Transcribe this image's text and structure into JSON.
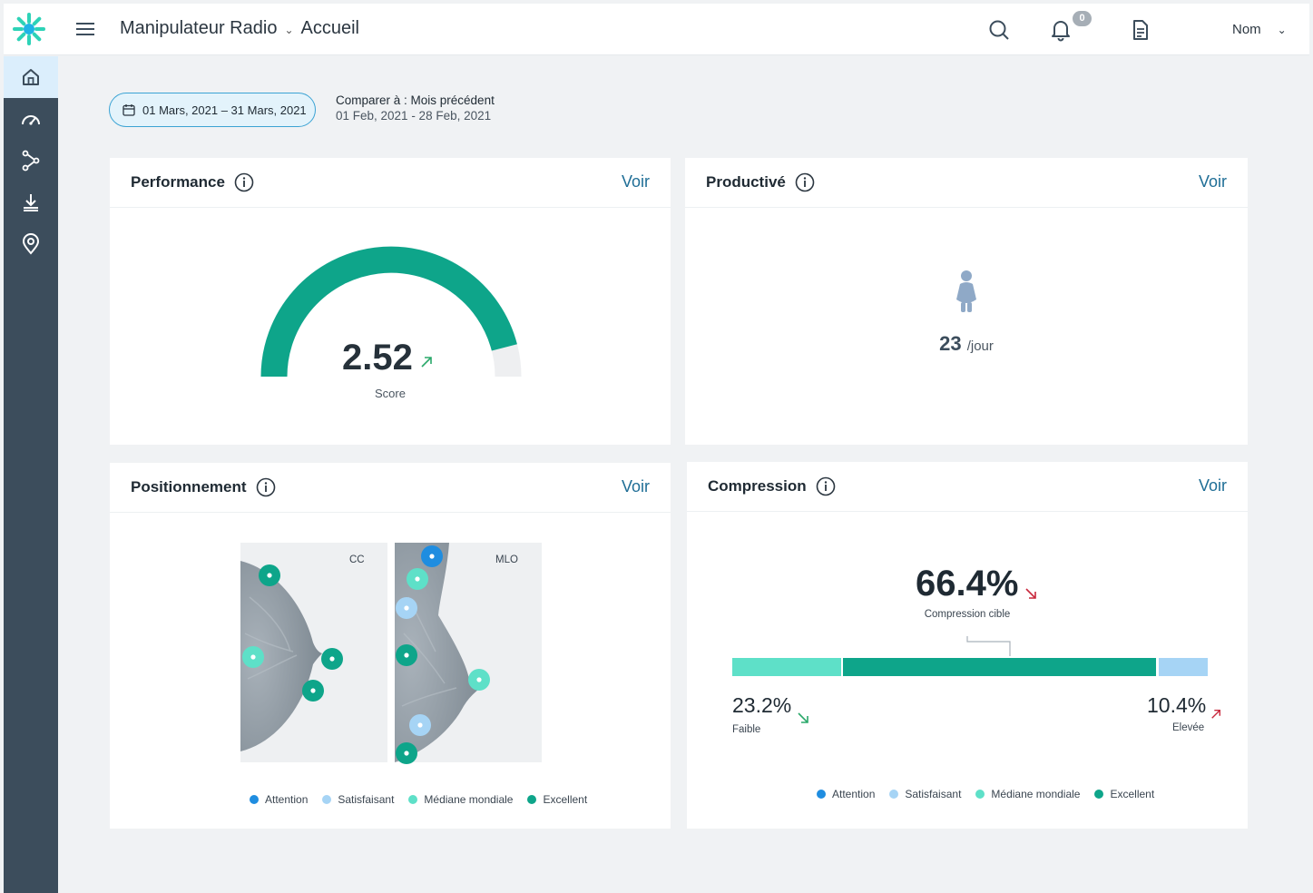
{
  "header": {
    "role": "Manipulateur Radio",
    "page": "Accueil",
    "notification_count": "0",
    "user_name": "Nom"
  },
  "sidebar": {
    "items": [
      {
        "icon": "home-icon",
        "active": true
      },
      {
        "icon": "gauge-icon",
        "active": false
      },
      {
        "icon": "workflow-icon",
        "active": false
      },
      {
        "icon": "download-icon",
        "active": false
      },
      {
        "icon": "location-pin-icon",
        "active": false
      }
    ]
  },
  "filters": {
    "date_range": "01 Mars, 2021 – 31 Mars, 2021",
    "compare_label": "Comparer à : Mois précédent",
    "compare_range": "01 Feb, 2021 - 28 Feb, 2021"
  },
  "cards": {
    "performance": {
      "title": "Performance",
      "link": "Voir",
      "value": "2.52",
      "value_label": "Score",
      "gauge_fraction": 0.92,
      "trend": "up"
    },
    "productivite": {
      "title": "Productivé",
      "link": "Voir",
      "value": "23",
      "unit": "/jour",
      "icon": "patient-icon"
    },
    "positionnement": {
      "title": "Positionnement",
      "link": "Voir",
      "views": [
        "CC",
        "MLO"
      ],
      "legend": [
        "Attention",
        "Satisfaisant",
        "Médiane mondiale",
        "Excellent"
      ]
    },
    "compression": {
      "title": "Compression",
      "link": "Voir",
      "target_value": "66.4%",
      "target_label": "Compression cible",
      "low_value": "23.2%",
      "low_label": "Faible",
      "high_value": "10.4%",
      "high_label": "Elevée",
      "distribution": [
        0.232,
        0.664,
        0.104
      ],
      "legend": [
        "Attention",
        "Satisfaisant",
        "Médiane mondiale",
        "Excellent"
      ]
    }
  },
  "colors": {
    "attention": "#1f8de0",
    "satisfaisant": "#a6d4f5",
    "mediane": "#5ee0c8",
    "excellent": "#0ea58a",
    "sidebar": "#3c4d5c",
    "link": "#1f6e96"
  }
}
